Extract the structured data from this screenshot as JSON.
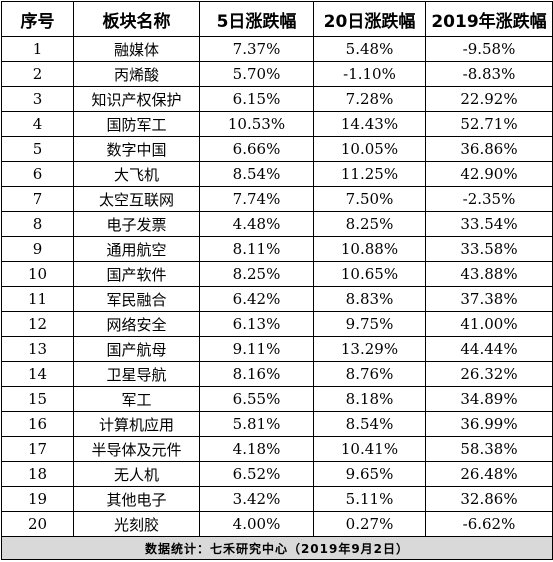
{
  "table": {
    "headers": [
      "序号",
      "板块名称",
      "5日涨跌幅",
      "20日涨跌幅",
      "2019年涨跌幅"
    ],
    "rows": [
      [
        "1",
        "融媒体",
        "7.37%",
        "5.48%",
        "-9.58%"
      ],
      [
        "2",
        "丙烯酸",
        "5.70%",
        "-1.10%",
        "-8.83%"
      ],
      [
        "3",
        "知识产权保护",
        "6.15%",
        "7.28%",
        "22.92%"
      ],
      [
        "4",
        "国防军工",
        "10.53%",
        "14.43%",
        "52.71%"
      ],
      [
        "5",
        "数字中国",
        "6.66%",
        "10.05%",
        "36.86%"
      ],
      [
        "6",
        "大飞机",
        "8.54%",
        "11.25%",
        "42.90%"
      ],
      [
        "7",
        "太空互联网",
        "7.74%",
        "7.50%",
        "-2.35%"
      ],
      [
        "8",
        "电子发票",
        "4.48%",
        "8.25%",
        "33.54%"
      ],
      [
        "9",
        "通用航空",
        "8.11%",
        "10.88%",
        "33.58%"
      ],
      [
        "10",
        "国产软件",
        "8.25%",
        "10.65%",
        "43.88%"
      ],
      [
        "11",
        "军民融合",
        "6.42%",
        "8.83%",
        "37.38%"
      ],
      [
        "12",
        "网络安全",
        "6.13%",
        "9.75%",
        "41.00%"
      ],
      [
        "13",
        "国产航母",
        "9.11%",
        "13.29%",
        "44.44%"
      ],
      [
        "14",
        "卫星导航",
        "8.16%",
        "8.76%",
        "26.32%"
      ],
      [
        "15",
        "军工",
        "6.55%",
        "8.18%",
        "34.89%"
      ],
      [
        "16",
        "计算机应用",
        "5.81%",
        "8.54%",
        "36.99%"
      ],
      [
        "17",
        "半导体及元件",
        "4.18%",
        "10.41%",
        "58.38%"
      ],
      [
        "18",
        "无人机",
        "6.52%",
        "9.65%",
        "26.48%"
      ],
      [
        "19",
        "其他电子",
        "3.42%",
        "5.11%",
        "32.86%"
      ],
      [
        "20",
        "光刻胶",
        "4.00%",
        "0.27%",
        "-6.62%"
      ]
    ],
    "footer": "数据统计：七禾研究中心（2019年9月2日）"
  },
  "colors": {
    "border": "#000000",
    "footer_bg": "#d9d9d9",
    "text": "#000000"
  }
}
